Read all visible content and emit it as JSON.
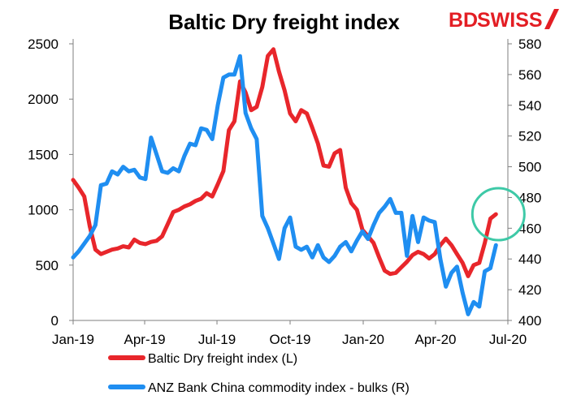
{
  "header": {
    "title": "Baltic Dry freight index",
    "brand_prefix": "BD",
    "brand_suffix": "SWISS",
    "brand_color": "#e31e24"
  },
  "chart_data": {
    "type": "line",
    "title": "Baltic Dry freight index",
    "x_ticks": [
      "Jan-19",
      "Apr-19",
      "Jul-19",
      "Oct-19",
      "Jan-20",
      "Apr-20",
      "Jul-20"
    ],
    "x_range": [
      "2019-01-01",
      "2020-07-01"
    ],
    "y_left": {
      "ticks": [
        0,
        500,
        1000,
        1500,
        2000,
        2500
      ],
      "range": [
        0,
        2500
      ]
    },
    "y_right": {
      "ticks": [
        400,
        420,
        440,
        460,
        480,
        500,
        520,
        540,
        560,
        580
      ],
      "range": [
        400,
        580
      ]
    },
    "grid": false,
    "legend_position": "bottom",
    "annotation": {
      "shape": "circle",
      "color": "#3ec9a7",
      "around": "latest values"
    },
    "series": [
      {
        "name": "Baltic Dry freight index (L)",
        "axis": "left",
        "color": "#e8262b",
        "x": [
          "2019-01-01",
          "2019-01-08",
          "2019-01-15",
          "2019-01-22",
          "2019-01-29",
          "2019-02-05",
          "2019-02-12",
          "2019-02-19",
          "2019-02-26",
          "2019-03-05",
          "2019-03-12",
          "2019-03-19",
          "2019-03-26",
          "2019-04-02",
          "2019-04-09",
          "2019-04-16",
          "2019-04-23",
          "2019-04-30",
          "2019-05-07",
          "2019-05-14",
          "2019-05-21",
          "2019-05-28",
          "2019-06-04",
          "2019-06-11",
          "2019-06-18",
          "2019-06-25",
          "2019-07-02",
          "2019-07-09",
          "2019-07-16",
          "2019-07-23",
          "2019-07-30",
          "2019-08-06",
          "2019-08-13",
          "2019-08-20",
          "2019-08-27",
          "2019-09-03",
          "2019-09-10",
          "2019-09-17",
          "2019-09-24",
          "2019-10-01",
          "2019-10-08",
          "2019-10-15",
          "2019-10-22",
          "2019-10-29",
          "2019-11-05",
          "2019-11-12",
          "2019-11-19",
          "2019-11-26",
          "2019-12-03",
          "2019-12-10",
          "2019-12-17",
          "2019-12-24",
          "2019-12-31",
          "2020-01-07",
          "2020-01-14",
          "2020-01-21",
          "2020-01-28",
          "2020-02-04",
          "2020-02-11",
          "2020-02-18",
          "2020-02-25",
          "2020-03-03",
          "2020-03-10",
          "2020-03-17",
          "2020-03-24",
          "2020-03-31",
          "2020-04-07",
          "2020-04-14",
          "2020-04-21",
          "2020-04-28",
          "2020-05-05",
          "2020-05-12",
          "2020-05-19",
          "2020-05-26",
          "2020-06-02",
          "2020-06-09",
          "2020-06-16"
        ],
        "values": [
          1270,
          1200,
          1120,
          850,
          640,
          600,
          620,
          640,
          650,
          670,
          660,
          730,
          700,
          690,
          710,
          720,
          760,
          870,
          980,
          1000,
          1030,
          1050,
          1080,
          1100,
          1150,
          1120,
          1230,
          1350,
          1720,
          1800,
          2160,
          2060,
          1900,
          1930,
          2110,
          2390,
          2450,
          2250,
          2080,
          1870,
          1800,
          1900,
          1870,
          1740,
          1600,
          1400,
          1390,
          1510,
          1540,
          1200,
          1060,
          1000,
          820,
          760,
          700,
          570,
          450,
          420,
          430,
          480,
          530,
          590,
          620,
          600,
          560,
          600,
          680,
          740,
          680,
          600,
          520,
          400,
          500,
          520,
          700,
          920,
          960
        ]
      },
      {
        "name": "ANZ Bank China commodity index - bulks (R)",
        "axis": "right",
        "color": "#1f8ef1",
        "x": [
          "2019-01-01",
          "2019-01-08",
          "2019-01-15",
          "2019-01-22",
          "2019-01-29",
          "2019-02-05",
          "2019-02-12",
          "2019-02-19",
          "2019-02-26",
          "2019-03-05",
          "2019-03-12",
          "2019-03-19",
          "2019-03-26",
          "2019-04-02",
          "2019-04-09",
          "2019-04-16",
          "2019-04-23",
          "2019-04-30",
          "2019-05-07",
          "2019-05-14",
          "2019-05-21",
          "2019-05-28",
          "2019-06-04",
          "2019-06-11",
          "2019-06-18",
          "2019-06-25",
          "2019-07-02",
          "2019-07-09",
          "2019-07-16",
          "2019-07-23",
          "2019-07-30",
          "2019-08-06",
          "2019-08-13",
          "2019-08-20",
          "2019-08-27",
          "2019-09-03",
          "2019-09-10",
          "2019-09-17",
          "2019-09-24",
          "2019-10-01",
          "2019-10-08",
          "2019-10-15",
          "2019-10-22",
          "2019-10-29",
          "2019-11-05",
          "2019-11-12",
          "2019-11-19",
          "2019-11-26",
          "2019-12-03",
          "2019-12-10",
          "2019-12-17",
          "2019-12-24",
          "2019-12-31",
          "2020-01-07",
          "2020-01-14",
          "2020-01-21",
          "2020-01-28",
          "2020-02-04",
          "2020-02-11",
          "2020-02-18",
          "2020-02-25",
          "2020-03-03",
          "2020-03-10",
          "2020-03-17",
          "2020-03-24",
          "2020-03-31",
          "2020-04-07",
          "2020-04-14",
          "2020-04-21",
          "2020-04-28",
          "2020-05-05",
          "2020-05-12",
          "2020-05-19",
          "2020-05-26",
          "2020-06-02",
          "2020-06-09",
          "2020-06-16"
        ],
        "values": [
          441,
          445,
          450,
          455,
          462,
          488,
          489,
          497,
          495,
          500,
          497,
          498,
          493,
          492,
          519,
          508,
          497,
          496,
          499,
          497,
          507,
          515,
          514,
          525,
          524,
          518,
          540,
          558,
          560,
          560,
          572,
          535,
          525,
          518,
          468,
          460,
          450,
          440,
          460,
          467,
          448,
          446,
          448,
          441,
          449,
          441,
          438,
          442,
          448,
          451,
          445,
          452,
          458,
          453,
          462,
          470,
          474,
          479,
          470,
          470,
          442,
          468,
          451,
          467,
          465,
          464,
          440,
          422,
          431,
          435,
          418,
          404,
          412,
          409,
          432,
          434,
          449
        ]
      }
    ]
  }
}
